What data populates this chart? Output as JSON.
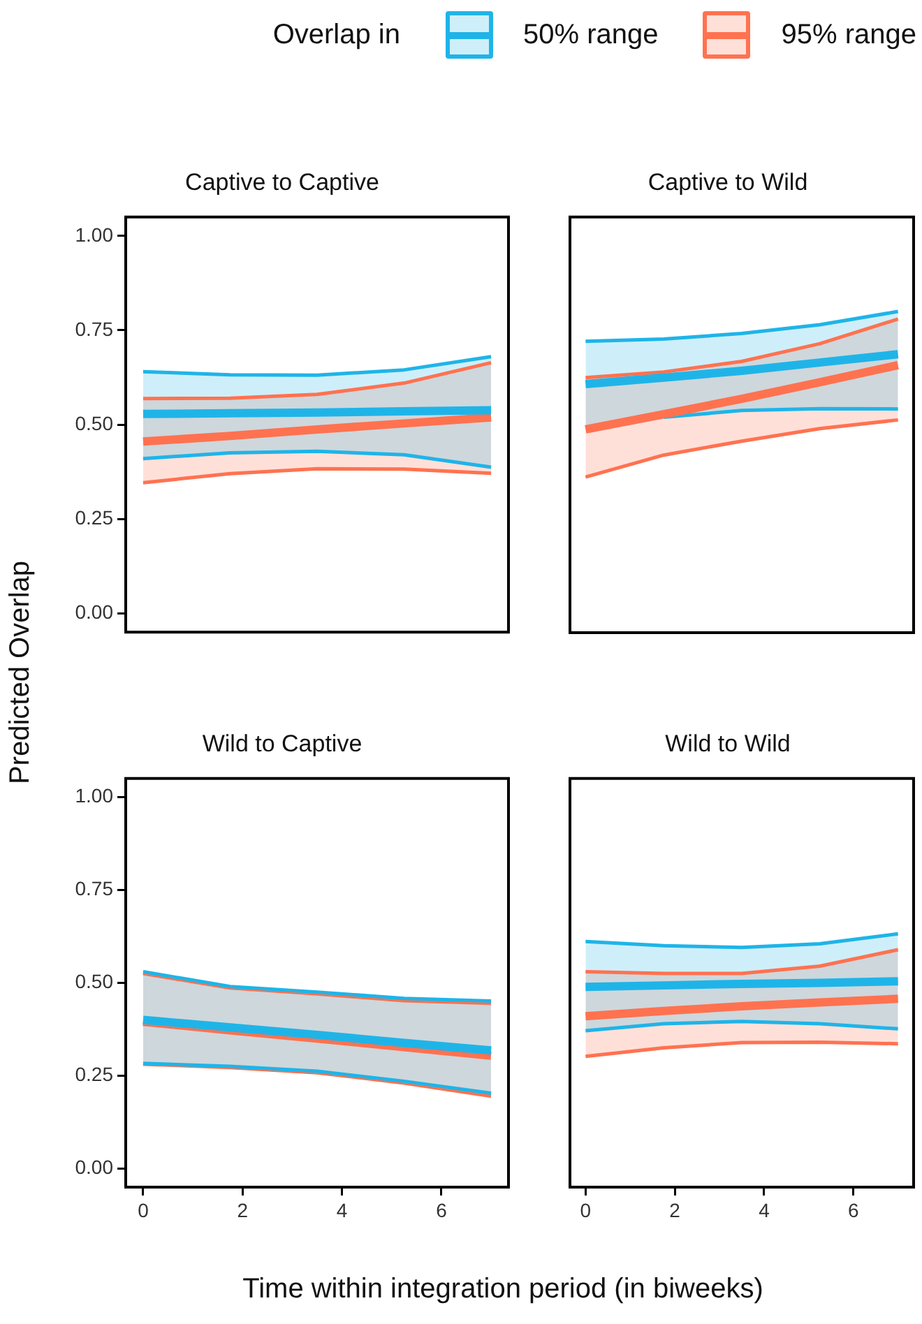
{
  "chart_data": [
    {
      "type": "line",
      "title": "Captive to Captive",
      "ylabel": "Predicted Overlap",
      "legend_title": "Overlap in",
      "legend": "top",
      "tick_labels": "y",
      "grid": false,
      "marker": "none",
      "x": [
        0,
        1.75,
        3.5,
        5.25,
        7
      ],
      "xlim": [
        -0.35,
        7.35
      ],
      "ylim": [
        -0.05,
        1.05
      ],
      "yticks": [
        {
          "value": 0,
          "label": "0.00"
        },
        {
          "value": 0.25,
          "label": "0.25"
        },
        {
          "value": 0.5,
          "label": "0.50"
        },
        {
          "value": 0.75,
          "label": "0.75"
        },
        {
          "value": 1,
          "label": "1.00"
        }
      ],
      "series": [
        {
          "name": "50% range",
          "color": "#1fb4e8",
          "values": [
            0.528,
            0.53,
            0.532,
            0.535,
            0.538
          ],
          "lower": [
            0.41,
            0.425,
            0.429,
            0.42,
            0.387
          ],
          "upper": [
            0.64,
            0.632,
            0.631,
            0.645,
            0.68
          ]
        },
        {
          "name": "95% range",
          "color": "#ff7250",
          "values": [
            0.455,
            0.47,
            0.487,
            0.503,
            0.519
          ],
          "lower": [
            0.346,
            0.37,
            0.383,
            0.382,
            0.371
          ],
          "upper": [
            0.569,
            0.57,
            0.58,
            0.61,
            0.664
          ]
        },
        {
          "color": "#1fb4e8",
          "values": [
            0.41,
            0.425,
            0.429,
            0.42,
            0.387
          ]
        },
        {
          "color": "#1fb4e8",
          "values": [
            0.64,
            0.632,
            0.631,
            0.645,
            0.68
          ]
        },
        {
          "color": "#ff7250",
          "values": [
            0.346,
            0.37,
            0.383,
            0.382,
            0.371
          ]
        },
        {
          "color": "#ff7250",
          "values": [
            0.569,
            0.57,
            0.58,
            0.61,
            0.664
          ]
        }
      ]
    },
    {
      "type": "line",
      "title": "Captive to Wild",
      "tick_labels": false,
      "grid": false,
      "marker": "none",
      "x": [
        0,
        1.75,
        3.5,
        5.25,
        7
      ],
      "xlim": [
        -0.35,
        7.35
      ],
      "ylim": [
        -0.05,
        1.05
      ],
      "series": [
        {
          "color": "#1fb4e8",
          "values": [
            0.608,
            0.625,
            0.643,
            0.665,
            0.687
          ],
          "lower": [
            0.482,
            0.52,
            0.538,
            0.543,
            0.542
          ],
          "upper": [
            0.721,
            0.727,
            0.742,
            0.765,
            0.8
          ]
        },
        {
          "color": "#ff7250",
          "values": [
            0.488,
            0.528,
            0.569,
            0.613,
            0.658
          ],
          "lower": [
            0.362,
            0.42,
            0.457,
            0.49,
            0.513
          ],
          "upper": [
            0.625,
            0.64,
            0.668,
            0.715,
            0.78
          ]
        },
        {
          "color": "#1fb4e8",
          "values": [
            null,
            0.52,
            0.538,
            0.543,
            0.542
          ]
        },
        {
          "color": "#1fb4e8",
          "values": [
            0.721,
            0.727,
            0.742,
            0.765,
            0.8
          ]
        },
        {
          "color": "#ff7250",
          "values": [
            0.362,
            0.42,
            0.457,
            0.49,
            0.513
          ]
        },
        {
          "color": "#ff7250",
          "values": [
            0.625,
            0.64,
            0.668,
            0.715,
            0.78
          ]
        }
      ]
    },
    {
      "type": "line",
      "title": "Wild to Captive",
      "xlabel": "Time within integration period (in biweeks)",
      "grid": false,
      "marker": "none",
      "x": [
        0,
        1.75,
        3.5,
        5.25,
        7
      ],
      "xlim": [
        -0.35,
        7.35
      ],
      "xticks": [
        0,
        2,
        4,
        6
      ],
      "ylim": [
        -0.05,
        1.05
      ],
      "yticks": [
        {
          "value": 0,
          "label": "0.00"
        },
        {
          "value": 0.25,
          "label": "0.25"
        },
        {
          "value": 0.5,
          "label": "0.50"
        },
        {
          "value": 0.75,
          "label": "0.75"
        },
        {
          "value": 1,
          "label": "1.00"
        }
      ],
      "series": [
        {
          "color": "#1fb4e8",
          "values": [
            0.4,
            0.38,
            0.36,
            0.338,
            0.318
          ],
          "lower": [
            0.283,
            0.275,
            0.262,
            0.235,
            0.203
          ],
          "upper": [
            0.53,
            0.49,
            0.475,
            0.458,
            0.451
          ]
        },
        {
          "color": "#ff7250",
          "values": [
            0.395,
            0.372,
            0.35,
            0.327,
            0.304
          ],
          "lower": [
            0.281,
            0.272,
            0.258,
            0.23,
            0.195
          ],
          "upper": [
            0.525,
            0.486,
            0.47,
            0.452,
            0.445
          ]
        },
        {
          "color": "#1fb4e8",
          "values": [
            0.283,
            0.275,
            0.262,
            0.235,
            0.203
          ]
        },
        {
          "color": "#1fb4e8",
          "values": [
            0.53,
            0.49,
            0.475,
            0.458,
            0.451
          ]
        },
        {
          "color": "#ff7250",
          "values": [
            0.281,
            0.272,
            0.258,
            0.23,
            0.195
          ]
        },
        {
          "color": "#ff7250",
          "values": [
            0.525,
            0.486,
            0.47,
            0.452,
            0.445
          ]
        }
      ]
    },
    {
      "type": "line",
      "title": "Wild to Wild",
      "tick_labels": "x",
      "grid": false,
      "marker": "none",
      "x": [
        0,
        1.75,
        3.5,
        5.25,
        7
      ],
      "xlim": [
        -0.35,
        7.35
      ],
      "xticks": [
        0,
        2,
        4,
        6
      ],
      "ylim": [
        -0.05,
        1.05
      ],
      "series": [
        {
          "color": "#1fb4e8",
          "values": [
            0.489,
            0.493,
            0.497,
            0.5,
            0.504
          ],
          "lower": [
            0.371,
            0.39,
            0.396,
            0.39,
            0.376
          ],
          "upper": [
            0.611,
            0.6,
            0.595,
            0.605,
            0.632
          ]
        },
        {
          "color": "#ff7250",
          "values": [
            0.41,
            0.424,
            0.437,
            0.447,
            0.457
          ],
          "lower": [
            0.302,
            0.325,
            0.339,
            0.34,
            0.336
          ],
          "upper": [
            0.53,
            0.525,
            0.525,
            0.545,
            0.589
          ]
        },
        {
          "color": "#1fb4e8",
          "values": [
            0.371,
            0.39,
            0.396,
            0.39,
            0.376
          ]
        },
        {
          "color": "#1fb4e8",
          "values": [
            0.611,
            0.6,
            0.595,
            0.605,
            0.632
          ]
        },
        {
          "color": "#ff7250",
          "values": [
            0.302,
            0.325,
            0.339,
            0.34,
            0.336
          ]
        },
        {
          "color": "#ff7250",
          "values": [
            0.53,
            0.525,
            0.525,
            0.545,
            0.589
          ]
        }
      ]
    }
  ]
}
